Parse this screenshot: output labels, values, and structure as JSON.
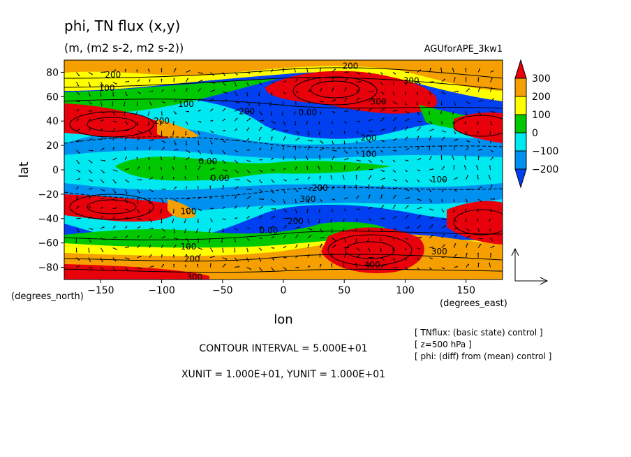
{
  "title": "phi, TN flux (x,y)",
  "subtitle": "(m, (m2 s-2, m2 s-2))",
  "run_name": "AGUforAPE_3kw1",
  "chart_data": {
    "type": "heatmap",
    "description_fields": {
      "field": "phi (diff) from (mean) control, shaded contours with TN flux vectors"
    },
    "xlabel": "lon",
    "ylabel": "lat",
    "x_unit_label": "(degrees_east)",
    "y_unit_label": "(degrees_north)",
    "xlim": [
      -180,
      180
    ],
    "ylim": [
      -90,
      90
    ],
    "x_ticks": [
      -150,
      -100,
      -50,
      0,
      50,
      100,
      150
    ],
    "y_ticks": [
      80,
      60,
      40,
      20,
      0,
      -20,
      -40,
      -60,
      -80
    ],
    "x_tick_labels": [
      "−150",
      "−100",
      "−50",
      "0",
      "50",
      "100",
      "150"
    ],
    "y_tick_labels": [
      "80",
      "60",
      "40",
      "20",
      "0",
      "−20",
      "−40",
      "−60",
      "−80"
    ],
    "colorbar": {
      "levels": [
        300,
        200,
        100,
        0,
        -100,
        -200
      ],
      "labels": [
        "300",
        "200",
        "100",
        "0",
        "−100",
        "−200"
      ],
      "colors": [
        "#e8000b",
        "#f5a000",
        "#ffff00",
        "#00c800",
        "#00e8f0",
        "#0090f0",
        "#0040f0"
      ]
    },
    "contour_labels": [
      {
        "text": "200",
        "lon": -140,
        "lat": 78
      },
      {
        "text": "100",
        "lon": -145,
        "lat": 67
      },
      {
        "text": "200",
        "lon": 55,
        "lat": 85
      },
      {
        "text": "300",
        "lon": 105,
        "lat": 73
      },
      {
        "text": "300",
        "lon": 78,
        "lat": 56
      },
      {
        "text": "100",
        "lon": -80,
        "lat": 54
      },
      {
        "text": "200",
        "lon": -30,
        "lat": 48
      },
      {
        "text": "0.00",
        "lon": 20,
        "lat": 47
      },
      {
        "text": "200",
        "lon": -100,
        "lat": 40
      },
      {
        "text": "200",
        "lon": 70,
        "lat": 26
      },
      {
        "text": "100",
        "lon": 70,
        "lat": 13
      },
      {
        "text": "0.00",
        "lon": -62,
        "lat": 7
      },
      {
        "text": "0.00",
        "lon": -52,
        "lat": -7
      },
      {
        "text": "100",
        "lon": 128,
        "lat": -8
      },
      {
        "text": "200",
        "lon": 30,
        "lat": -15
      },
      {
        "text": "300",
        "lon": 20,
        "lat": -24
      },
      {
        "text": "100",
        "lon": -78,
        "lat": -34
      },
      {
        "text": "200",
        "lon": 10,
        "lat": -42
      },
      {
        "text": "0.00",
        "lon": -12,
        "lat": -50
      },
      {
        "text": "100",
        "lon": -78,
        "lat": -63
      },
      {
        "text": "200",
        "lon": -75,
        "lat": -73
      },
      {
        "text": "300",
        "lon": -73,
        "lat": -88
      },
      {
        "text": "300",
        "lon": 128,
        "lat": -67
      },
      {
        "text": "400",
        "lon": 73,
        "lat": -78
      }
    ],
    "vector_reference": "TN flux reference arrows (x and y)"
  },
  "notes": {
    "contour_interval": "CONTOUR INTERVAL = 5.000E+01",
    "units": "XUNIT = 1.000E+01, YUNIT = 1.000E+01",
    "info_lines": [
      "[ TNflux: (basic state) control ]",
      "[ z=500 hPa ]",
      "[ phi: (diff) from (mean) control ]"
    ]
  }
}
